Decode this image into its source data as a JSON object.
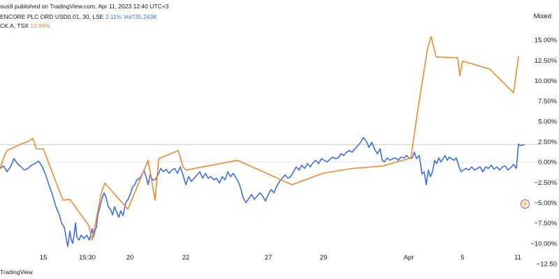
{
  "header": {
    "publish_line": "ous9 published on TradingView.com, Apr 11, 2023 12:40 UTC+3",
    "series1_label": "ENCORE PLC ORD USD0.01, 30, LSE",
    "series1_change": "2.11%",
    "series1_volume": "Vol735.243K",
    "series2_label": "CK.A, TSX",
    "series2_change": "12.99%",
    "scale_mode": "Mixed"
  },
  "footer": {
    "brand": "TradingView"
  },
  "icons": {
    "flash": "lightning-icon"
  },
  "colors": {
    "series1": "#3c6df0",
    "series2": "#f2892b",
    "last_value_line": "#c7d0f7"
  },
  "chart_data": {
    "type": "line",
    "title": "",
    "xlabel": "",
    "ylabel": "",
    "ylim": [
      -12.5,
      17.5
    ],
    "y_ticks": [
      15,
      12.5,
      10,
      7.5,
      5,
      2.5,
      0,
      -2.5,
      -5,
      -7.5,
      -10,
      -12.5
    ],
    "y_tick_labels": [
      "15.00%",
      "12.50%",
      "10.00%",
      "7.50%",
      "5.00%",
      "2.50%",
      "0.00%",
      "−2.50%",
      "−5.00%",
      "−7.50%",
      "−10.00%",
      "−12.50"
    ],
    "x_ticks": [
      {
        "label": "15",
        "pos": 62
      },
      {
        "label": "15:30",
        "pos": 125
      },
      {
        "label": "20",
        "pos": 186
      },
      {
        "label": "22",
        "pos": 266
      },
      {
        "label": "27",
        "pos": 384
      },
      {
        "label": "29",
        "pos": 463
      },
      {
        "label": "Apr",
        "pos": 585
      },
      {
        "label": "5",
        "pos": 662
      },
      {
        "label": "11",
        "pos": 741
      }
    ],
    "x_range": [
      0,
      770
    ],
    "grid": false,
    "series": [
      {
        "name": "ENCORE PLC ORD USD0.01, 30, LSE",
        "points": [
          [
            0,
            -0.8
          ],
          [
            5,
            -0.5
          ],
          [
            10,
            -1.2
          ],
          [
            15,
            -0.6
          ],
          [
            20,
            0.4
          ],
          [
            25,
            -0.2
          ],
          [
            30,
            -0.6
          ],
          [
            35,
            -1.0
          ],
          [
            40,
            -0.8
          ],
          [
            45,
            -0.4
          ],
          [
            50,
            -0.2
          ],
          [
            55,
            0.1
          ],
          [
            60,
            -0.5
          ],
          [
            65,
            -1.5
          ],
          [
            70,
            -2.8
          ],
          [
            75,
            -4.0
          ],
          [
            80,
            -5.5
          ],
          [
            85,
            -6.5
          ],
          [
            88,
            -7.5
          ],
          [
            92,
            -8.0
          ],
          [
            95,
            -9.5
          ],
          [
            97,
            -10.4
          ],
          [
            100,
            -8.5
          ],
          [
            102,
            -9.6
          ],
          [
            104,
            -10.0
          ],
          [
            106,
            -9.0
          ],
          [
            108,
            -7.5
          ],
          [
            110,
            -9.2
          ],
          [
            113,
            -9.6
          ],
          [
            116,
            -9.0
          ],
          [
            120,
            -9.4
          ],
          [
            124,
            -9.0
          ],
          [
            128,
            -9.6
          ],
          [
            132,
            -8.2
          ],
          [
            134,
            -9.2
          ],
          [
            136,
            -8.4
          ],
          [
            138,
            -8.0
          ],
          [
            140,
            -6.5
          ],
          [
            143,
            -5.5
          ],
          [
            146,
            -4.5
          ],
          [
            149,
            -3.8
          ],
          [
            152,
            -4.4
          ],
          [
            155,
            -5.5
          ],
          [
            158,
            -5.8
          ],
          [
            161,
            -6.5
          ],
          [
            164,
            -5.5
          ],
          [
            167,
            -6.2
          ],
          [
            170,
            -6.8
          ],
          [
            173,
            -6.0
          ],
          [
            176,
            -6.6
          ],
          [
            180,
            -5.0
          ],
          [
            184,
            -4.5
          ],
          [
            187,
            -3.8
          ],
          [
            190,
            -3.0
          ],
          [
            193,
            -2.8
          ],
          [
            196,
            -2.2
          ],
          [
            200,
            -2.0
          ],
          [
            203,
            -1.6
          ],
          [
            206,
            -1.0
          ],
          [
            209,
            -1.8
          ],
          [
            212,
            -2.8
          ],
          [
            215,
            -1.5
          ],
          [
            218,
            -2.2
          ],
          [
            222,
            -2.2
          ],
          [
            226,
            -1.6
          ],
          [
            230,
            -0.8
          ],
          [
            234,
            -1.2
          ],
          [
            238,
            -0.9
          ],
          [
            242,
            -1.4
          ],
          [
            246,
            -1.0
          ],
          [
            250,
            -0.8
          ],
          [
            254,
            -1.4
          ],
          [
            258,
            -0.6
          ],
          [
            262,
            -1.6
          ],
          [
            266,
            -2.8
          ],
          [
            270,
            -1.8
          ],
          [
            274,
            -2.4
          ],
          [
            278,
            -2.0
          ],
          [
            282,
            -1.6
          ],
          [
            286,
            -1.2
          ],
          [
            290,
            -2.0
          ],
          [
            294,
            -1.4
          ],
          [
            298,
            -2.0
          ],
          [
            302,
            -1.8
          ],
          [
            306,
            -2.2
          ],
          [
            310,
            -2.0
          ],
          [
            314,
            -2.6
          ],
          [
            318,
            -1.8
          ],
          [
            322,
            -2.2
          ],
          [
            326,
            -1.2
          ],
          [
            330,
            -1.8
          ],
          [
            334,
            -1.4
          ],
          [
            338,
            -2.0
          ],
          [
            342,
            -2.6
          ],
          [
            345,
            -3.4
          ],
          [
            348,
            -4.4
          ],
          [
            352,
            -5.0
          ],
          [
            356,
            -4.5
          ],
          [
            360,
            -4.0
          ],
          [
            364,
            -4.6
          ],
          [
            368,
            -4.2
          ],
          [
            372,
            -3.8
          ],
          [
            376,
            -4.2
          ],
          [
            380,
            -4.8
          ],
          [
            384,
            -4.0
          ],
          [
            388,
            -3.4
          ],
          [
            392,
            -3.8
          ],
          [
            396,
            -3.0
          ],
          [
            400,
            -2.4
          ],
          [
            404,
            -2.0
          ],
          [
            408,
            -1.6
          ],
          [
            412,
            -2.0
          ],
          [
            416,
            -1.8
          ],
          [
            420,
            -1.2
          ],
          [
            424,
            -0.6
          ],
          [
            428,
            -1.0
          ],
          [
            432,
            -0.4
          ],
          [
            436,
            -0.8
          ],
          [
            440,
            -0.2
          ],
          [
            444,
            -0.6
          ],
          [
            448,
            -0.1
          ],
          [
            452,
            0.2
          ],
          [
            456,
            -0.2
          ],
          [
            460,
            0.4
          ],
          [
            464,
            0.2
          ],
          [
            468,
            0.0
          ],
          [
            472,
            0.3
          ],
          [
            476,
            0.6
          ],
          [
            480,
            0.4
          ],
          [
            484,
            0.5
          ],
          [
            488,
            1.0
          ],
          [
            492,
            0.8
          ],
          [
            496,
            1.2
          ],
          [
            500,
            1.4
          ],
          [
            504,
            1.2
          ],
          [
            508,
            1.6
          ],
          [
            512,
            2.0
          ],
          [
            516,
            2.4
          ],
          [
            520,
            3.0
          ],
          [
            524,
            2.6
          ],
          [
            528,
            1.8
          ],
          [
            532,
            2.4
          ],
          [
            536,
            1.6
          ],
          [
            540,
            1.0
          ],
          [
            544,
            1.6
          ],
          [
            547,
            0.2
          ],
          [
            550,
            0.0
          ],
          [
            554,
            0.5
          ],
          [
            558,
            0.2
          ],
          [
            562,
            0.4
          ],
          [
            566,
            0.5
          ],
          [
            570,
            0.2
          ],
          [
            574,
            0.6
          ],
          [
            578,
            0.5
          ],
          [
            582,
            0.8
          ],
          [
            586,
            0.4
          ],
          [
            590,
            0.5
          ],
          [
            593,
            1.2
          ],
          [
            596,
            0.4
          ],
          [
            600,
            0.8
          ],
          [
            604,
            -1.5
          ],
          [
            607,
            -1.2
          ],
          [
            610,
            -2.8
          ],
          [
            613,
            -1.0
          ],
          [
            616,
            -1.8
          ],
          [
            619,
            -1.2
          ],
          [
            622,
            0.2
          ],
          [
            625,
            -0.2
          ],
          [
            628,
            0.5
          ],
          [
            631,
            0.0
          ],
          [
            634,
            0.4
          ],
          [
            637,
            0.8
          ],
          [
            640,
            0.2
          ],
          [
            643,
            0.6
          ],
          [
            646,
            0.4
          ],
          [
            650,
            0.2
          ],
          [
            653,
            0.5
          ],
          [
            657,
            -0.6
          ],
          [
            660,
            -1.2
          ],
          [
            663,
            -1.0
          ],
          [
            667,
            -0.8
          ],
          [
            671,
            -1.0
          ],
          [
            675,
            -0.6
          ],
          [
            679,
            -1.0
          ],
          [
            683,
            -0.8
          ],
          [
            687,
            -0.6
          ],
          [
            691,
            -1.2
          ],
          [
            695,
            -0.6
          ],
          [
            699,
            -0.8
          ],
          [
            703,
            -0.4
          ],
          [
            707,
            -0.9
          ],
          [
            711,
            -0.6
          ],
          [
            715,
            -1.0
          ],
          [
            719,
            -0.6
          ],
          [
            723,
            -0.5
          ],
          [
            727,
            -1.0
          ],
          [
            731,
            -0.7
          ],
          [
            735,
            -0.3
          ],
          [
            739,
            -0.8
          ],
          [
            742,
            2.2
          ],
          [
            745,
            2.0
          ],
          [
            748,
            2.1
          ],
          [
            751,
            2.11
          ]
        ]
      },
      {
        "name": "CK.A, TSX",
        "points": [
          [
            0,
            -0.8
          ],
          [
            5,
            0.5
          ],
          [
            10,
            1.4
          ],
          [
            20,
            1.8
          ],
          [
            30,
            2.2
          ],
          [
            40,
            2.5
          ],
          [
            47,
            2.9
          ],
          [
            52,
            1.6
          ],
          [
            62,
            1.6
          ],
          [
            90,
            -4.7
          ],
          [
            100,
            -4.6
          ],
          [
            127,
            -7.8
          ],
          [
            132,
            -9.6
          ],
          [
            145,
            -3.8
          ],
          [
            150,
            -2.6
          ],
          [
            183,
            -5.8
          ],
          [
            212,
            0.2
          ],
          [
            222,
            -4.7
          ],
          [
            227,
            0.4
          ],
          [
            255,
            1.4
          ],
          [
            262,
            -0.6
          ],
          [
            266,
            -1.0
          ],
          [
            340,
            0.2
          ],
          [
            418,
            -2.8
          ],
          [
            462,
            -1.4
          ],
          [
            504,
            -0.8
          ],
          [
            548,
            -0.5
          ],
          [
            588,
            0.5
          ],
          [
            599,
            7.0
          ],
          [
            612,
            14.0
          ],
          [
            617,
            15.4
          ],
          [
            624,
            12.9
          ],
          [
            655,
            12.8
          ],
          [
            658,
            10.6
          ],
          [
            662,
            12.4
          ],
          [
            701,
            11.4
          ],
          [
            735,
            8.5
          ],
          [
            742,
            12.99
          ]
        ]
      }
    ]
  }
}
